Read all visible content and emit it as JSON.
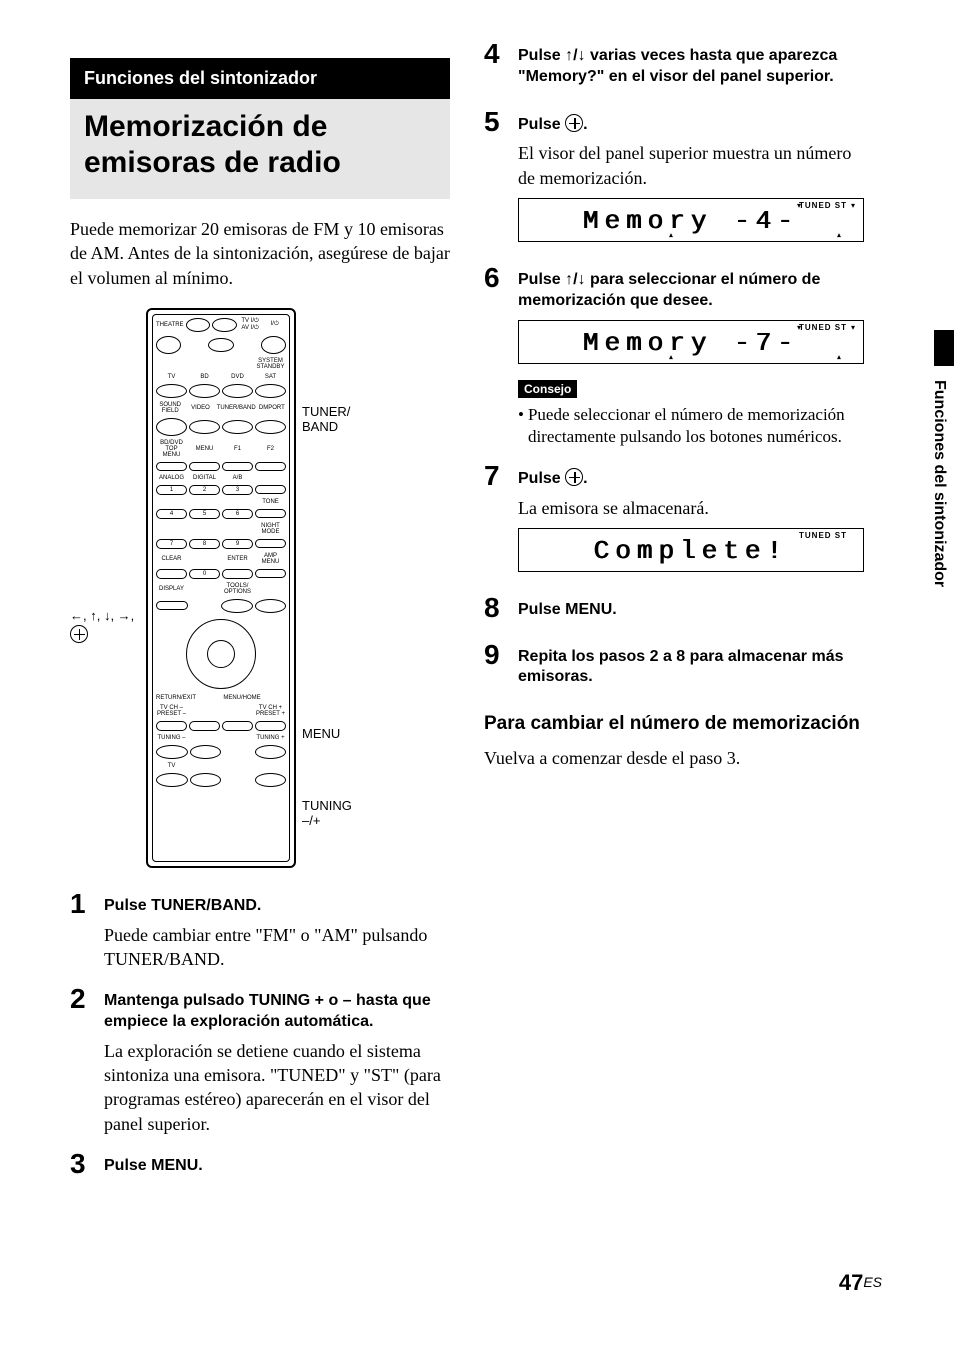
{
  "section_category": "Funciones del sintonizador",
  "section_title": "Memorización de emisoras de radio",
  "intro": "Puede memorizar 20 emisoras de FM y 10 emisoras de AM. Antes de la sintonización, asegúrese de bajar el volumen al mínimo.",
  "remote": {
    "left_labels": "←, ↑, ↓, →,",
    "right_labels": {
      "tuner_band": "TUNER/\nBAND",
      "menu": "MENU",
      "tuning": "TUNING\n–/+"
    },
    "row_top": [
      "THEATRE",
      "TV I/⏻\nAV I/⏻",
      "I/⏻"
    ],
    "row_standby": "SYSTEM STANDBY",
    "row_inputs": [
      "TV",
      "BD",
      "DVD",
      "SAT"
    ],
    "row_inputs2": [
      "SOUND FIELD",
      "VIDEO",
      "TUNER/BAND",
      "DMPORT"
    ],
    "row_menu": [
      "BD/DVD\nTOP MENU",
      "MENU",
      "F1",
      "F2"
    ],
    "row_mode": [
      "ANALOG",
      "DIGITAL",
      "A/B"
    ],
    "numbers": [
      "1",
      "2",
      "3",
      "4",
      "5",
      "6",
      "7",
      "8",
      "9",
      "0"
    ],
    "row_tone": "TONE",
    "row_night": "NIGHT\nMODE",
    "row_clear": "CLEAR",
    "row_enter": "ENTER",
    "row_amp": "AMP MENU",
    "row_display": "DISPLAY",
    "row_tools": "TOOLS/\nOPTIONS",
    "row_return": "RETURN/EXIT",
    "row_menuhome": "MENU/HOME",
    "row_tvch": [
      "TV CH –\nPRESET –",
      "TV CH +\nPRESET +"
    ],
    "row_tuning": [
      "TUNING –",
      "TUNING +"
    ],
    "row_tv": "TV"
  },
  "steps_left": [
    {
      "n": "1",
      "head": "Pulse TUNER/BAND.",
      "text": "Puede cambiar entre \"FM\" o \"AM\" pulsando TUNER/BAND."
    },
    {
      "n": "2",
      "head": "Mantenga pulsado TUNING + o – hasta que empiece la exploración automática.",
      "text": "La exploración se detiene cuando el sistema sintoniza una emisora. \"TUNED\" y \"ST\" (para programas estéreo) aparecerán en el visor del panel superior."
    },
    {
      "n": "3",
      "head": "Pulse MENU.",
      "text": ""
    }
  ],
  "steps_right": [
    {
      "n": "4",
      "head": "Pulse ↑/↓ varias veces hasta que aparezca \"Memory?\" en el visor del panel superior.",
      "text": ""
    },
    {
      "n": "5",
      "head_pre": "Pulse ",
      "head_post": ".",
      "text": "El visor del panel superior muestra un número de memorización.",
      "display": {
        "text": "Memory -4-",
        "flags": "TUNED  ST",
        "arrows": true
      }
    },
    {
      "n": "6",
      "head": "Pulse ↑/↓ para seleccionar el número de memorización que desee.",
      "text": "",
      "display": {
        "text": "Memory -7-",
        "flags": "TUNED  ST",
        "arrows": true
      },
      "hint_label": "Consejo",
      "hint_text": "Puede seleccionar el número de memorización directamente pulsando los botones numéricos."
    },
    {
      "n": "7",
      "head_pre": "Pulse ",
      "head_post": ".",
      "text": "La emisora se almacenará.",
      "display": {
        "text": "Complete!",
        "flags": "TUNED  ST",
        "arrows": false
      }
    },
    {
      "n": "8",
      "head": "Pulse MENU.",
      "text": ""
    },
    {
      "n": "9",
      "head": "Repita los pasos 2 a 8 para almacenar más emisoras.",
      "text": ""
    }
  ],
  "sub_heading": "Para cambiar el número de memorización",
  "sub_text": "Vuelva a comenzar desde el paso 3.",
  "side_tab": "Funciones del sintonizador",
  "page_number": "47",
  "page_lang": "ES"
}
